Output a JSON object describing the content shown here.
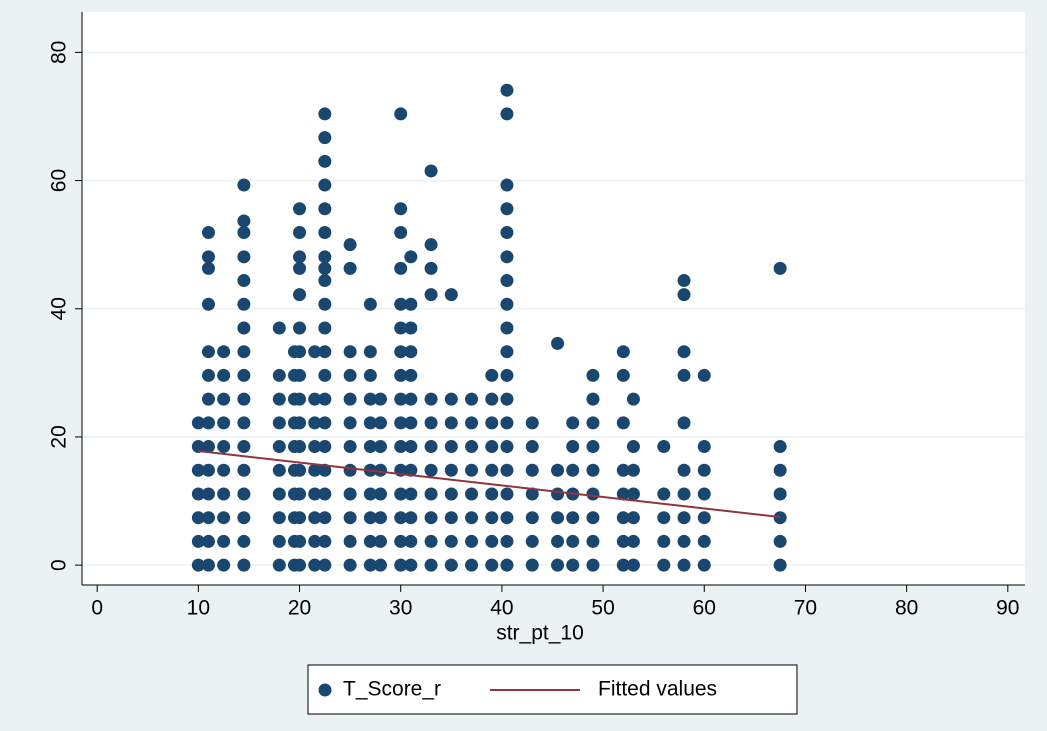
{
  "chart_data": {
    "type": "scatter",
    "xlabel": "str_pt_10",
    "xlim": [
      -1.5,
      91.7
    ],
    "ylim": [
      -3.1,
      86.3
    ],
    "xticks": [
      0,
      10,
      20,
      30,
      40,
      50,
      60,
      70,
      80,
      90
    ],
    "yticks": [
      0,
      20,
      40,
      60,
      80
    ],
    "grid": true,
    "legend": "bottom",
    "series": [
      {
        "name": "T_Score_r",
        "color": "#1a476f",
        "kind": "scatter",
        "x": [
          10,
          10,
          10,
          10,
          10,
          10,
          10,
          11,
          11,
          11,
          11,
          11,
          11,
          11,
          11,
          11,
          11,
          11,
          11,
          11,
          11,
          12.5,
          12.5,
          12.5,
          12.5,
          12.5,
          12.5,
          12.5,
          12.5,
          12.5,
          12.5,
          14.5,
          14.5,
          14.5,
          14.5,
          14.5,
          14.5,
          14.5,
          14.5,
          14.5,
          14.5,
          14.5,
          14.5,
          14.5,
          14.5,
          14.5,
          14.5,
          14.5,
          18,
          18,
          18,
          18,
          18,
          18,
          18,
          18,
          18,
          18,
          19.5,
          19.5,
          19.5,
          19.5,
          19.5,
          19.5,
          19.5,
          19.5,
          19.5,
          19.5,
          20,
          20,
          20,
          20,
          20,
          20,
          20,
          20,
          20,
          20,
          20,
          20,
          20,
          20,
          20,
          20,
          21.5,
          21.5,
          21.5,
          21.5,
          21.5,
          21.5,
          21.5,
          21.5,
          21.5,
          22.5,
          22.5,
          22.5,
          22.5,
          22.5,
          22.5,
          22.5,
          22.5,
          22.5,
          22.5,
          22.5,
          22.5,
          22.5,
          22.5,
          22.5,
          22.5,
          22.5,
          22.5,
          22.5,
          22.5,
          22.5,
          25,
          25,
          25,
          25,
          25,
          25,
          25,
          25,
          25,
          25,
          25,
          25,
          27,
          27,
          27,
          27,
          27,
          27,
          27,
          27,
          27,
          27,
          27,
          28,
          28,
          28,
          28,
          28,
          28,
          28,
          28,
          30,
          30,
          30,
          30,
          30,
          30,
          30,
          30,
          30,
          30,
          30,
          30,
          30,
          30,
          30,
          30,
          31,
          31,
          31,
          31,
          31,
          31,
          31,
          31,
          31,
          31,
          31,
          31,
          31,
          33,
          33,
          33,
          33,
          33,
          33,
          33,
          33,
          33,
          33,
          33,
          33,
          35,
          35,
          35,
          35,
          35,
          35,
          35,
          35,
          35,
          37,
          37,
          37,
          37,
          37,
          37,
          37,
          37,
          39,
          39,
          39,
          39,
          39,
          39,
          39,
          39,
          39,
          40.5,
          40.5,
          40.5,
          40.5,
          40.5,
          40.5,
          40.5,
          40.5,
          40.5,
          40.5,
          40.5,
          40.5,
          40.5,
          40.5,
          40.5,
          40.5,
          40.5,
          40.5,
          40.5,
          43,
          43,
          43,
          43,
          43,
          43,
          43,
          45.5,
          45.5,
          45.5,
          45.5,
          45.5,
          45.5,
          47,
          47,
          47,
          47,
          47,
          47,
          47,
          49,
          49,
          49,
          49,
          49,
          49,
          49,
          49,
          49,
          52,
          52,
          52,
          52,
          52,
          52,
          52,
          52,
          53,
          53,
          53,
          53,
          53,
          53,
          53,
          56,
          56,
          56,
          56,
          56,
          58,
          58,
          58,
          58,
          58,
          58,
          58,
          58,
          58,
          58,
          60,
          60,
          60,
          60,
          60,
          60,
          60,
          67.5,
          67.5,
          67.5,
          67.5,
          67.5,
          67.5,
          67.5
        ],
        "values": [
          0,
          3.7,
          7.4,
          11.1,
          14.8,
          18.5,
          22.2,
          0,
          3.7,
          7.4,
          11.1,
          14.8,
          18.5,
          22.2,
          25.9,
          29.6,
          33.3,
          40.7,
          46.3,
          48.1,
          51.9,
          0,
          3.7,
          7.4,
          11.1,
          14.8,
          18.5,
          22.2,
          25.9,
          29.6,
          33.3,
          0,
          3.7,
          7.4,
          11.1,
          14.8,
          18.5,
          22.2,
          25.9,
          29.6,
          33.3,
          37,
          40.7,
          44.4,
          48.1,
          51.9,
          53.7,
          59.3,
          0,
          3.7,
          7.4,
          11.1,
          14.8,
          18.5,
          22.2,
          25.9,
          29.6,
          37,
          0,
          3.7,
          7.4,
          11.1,
          14.8,
          18.5,
          22.2,
          25.9,
          29.6,
          33.3,
          0,
          3.7,
          7.4,
          11.1,
          14.8,
          18.5,
          22.2,
          25.9,
          29.6,
          33.3,
          37,
          42.2,
          46.3,
          48.1,
          51.9,
          55.6,
          0,
          3.7,
          7.4,
          11.1,
          14.8,
          18.5,
          22.2,
          25.9,
          33.3,
          0,
          3.7,
          7.4,
          11.1,
          14.8,
          18.5,
          22.2,
          25.9,
          29.6,
          33.3,
          37,
          40.7,
          44.4,
          46.3,
          48.1,
          51.9,
          55.6,
          59.3,
          63,
          66.7,
          70.4,
          0,
          3.7,
          7.4,
          11.1,
          14.8,
          18.5,
          22.2,
          25.9,
          29.6,
          33.3,
          46.3,
          50,
          0,
          3.7,
          7.4,
          11.1,
          14.8,
          18.5,
          22.2,
          25.9,
          29.6,
          33.3,
          40.7,
          0,
          3.7,
          7.4,
          11.1,
          14.8,
          18.5,
          22.2,
          25.9,
          0,
          3.7,
          7.4,
          11.1,
          14.8,
          18.5,
          22.2,
          25.9,
          29.6,
          33.3,
          37,
          40.7,
          46.3,
          51.9,
          55.6,
          70.4,
          0,
          3.7,
          7.4,
          11.1,
          14.8,
          18.5,
          22.2,
          25.9,
          29.6,
          33.3,
          37,
          40.7,
          48.1,
          0,
          3.7,
          7.4,
          11.1,
          14.8,
          18.5,
          22.2,
          25.9,
          42.2,
          46.3,
          50,
          61.5,
          0,
          3.7,
          7.4,
          11.1,
          14.8,
          18.5,
          22.2,
          25.9,
          42.2,
          0,
          3.7,
          7.4,
          11.1,
          14.8,
          18.5,
          22.2,
          25.9,
          0,
          3.7,
          7.4,
          11.1,
          14.8,
          18.5,
          22.2,
          25.9,
          29.6,
          0,
          3.7,
          7.4,
          11.1,
          14.8,
          18.5,
          22.2,
          25.9,
          29.6,
          33.3,
          37,
          40.7,
          44.4,
          48.1,
          51.9,
          55.6,
          59.3,
          70.4,
          74.1,
          0,
          3.7,
          7.4,
          11.1,
          14.8,
          18.5,
          22.2,
          0,
          3.7,
          7.4,
          11.1,
          14.8,
          34.6,
          0,
          3.7,
          7.4,
          11.1,
          14.8,
          18.5,
          22.2,
          0,
          3.7,
          7.4,
          11.1,
          14.8,
          18.5,
          22.2,
          25.9,
          29.6,
          0,
          3.7,
          7.4,
          11.1,
          14.8,
          22.2,
          29.6,
          33.3,
          0,
          3.7,
          7.4,
          11.1,
          14.8,
          18.5,
          25.9,
          0,
          3.7,
          7.4,
          11.1,
          18.5,
          0,
          3.7,
          7.4,
          11.1,
          14.8,
          22.2,
          29.6,
          33.3,
          42.2,
          44.4,
          0,
          3.7,
          7.4,
          11.1,
          14.8,
          18.5,
          29.6,
          0,
          3.7,
          7.4,
          11.1,
          14.8,
          18.5,
          46.3
        ]
      },
      {
        "name": "Fitted values",
        "color": "#90353b",
        "kind": "line",
        "x": [
          10,
          67.5
        ],
        "values": [
          17.8,
          7.5
        ]
      }
    ]
  }
}
